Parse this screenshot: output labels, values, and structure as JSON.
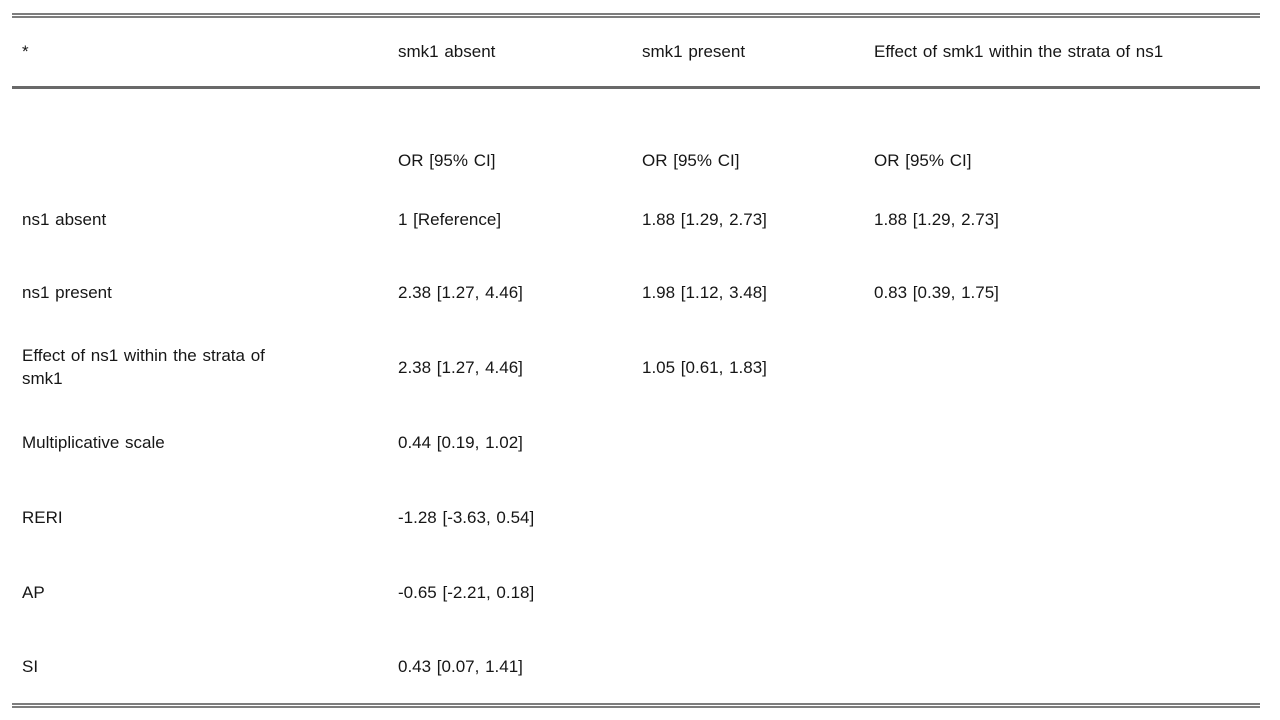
{
  "table": {
    "header": {
      "footnote_marker": "*",
      "col_smk1_absent": "smk1 absent",
      "col_smk1_present": "smk1 present",
      "col_effect_smk1": "Effect of smk1 within the strata of ns1"
    },
    "subheader": {
      "label": "",
      "smk1_absent": "OR [95% CI]",
      "smk1_present": "OR [95% CI]",
      "effect_smk1": "OR [95% CI]"
    },
    "rows": [
      {
        "label": "ns1 absent",
        "cells": [
          "1 [Reference]",
          "1.88 [1.29, 2.73]",
          "1.88 [1.29, 2.73]"
        ]
      },
      {
        "label": "ns1 present",
        "cells": [
          "2.38 [1.27, 4.46]",
          "1.98 [1.12, 3.48]",
          "0.83 [0.39, 1.75]"
        ]
      },
      {
        "label": "Effect of ns1 within the strata of smk1",
        "cells": [
          "2.38 [1.27, 4.46]",
          "1.05 [0.61, 1.83]",
          ""
        ]
      },
      {
        "label": "Multiplicative scale",
        "cells": [
          "0.44 [0.19, 1.02]",
          "",
          ""
        ]
      },
      {
        "label": "RERI",
        "cells": [
          "-1.28 [-3.63, 0.54]",
          "",
          ""
        ]
      },
      {
        "label": "AP",
        "cells": [
          "-0.65 [-2.21, 0.18]",
          "",
          ""
        ]
      },
      {
        "label": "SI",
        "cells": [
          "0.43 [0.07, 1.41]",
          "",
          ""
        ]
      }
    ],
    "colors": {
      "background": "#ffffff",
      "text": "#161616",
      "outer_border": "#7d7d7d",
      "header_rule": "#696969"
    }
  }
}
